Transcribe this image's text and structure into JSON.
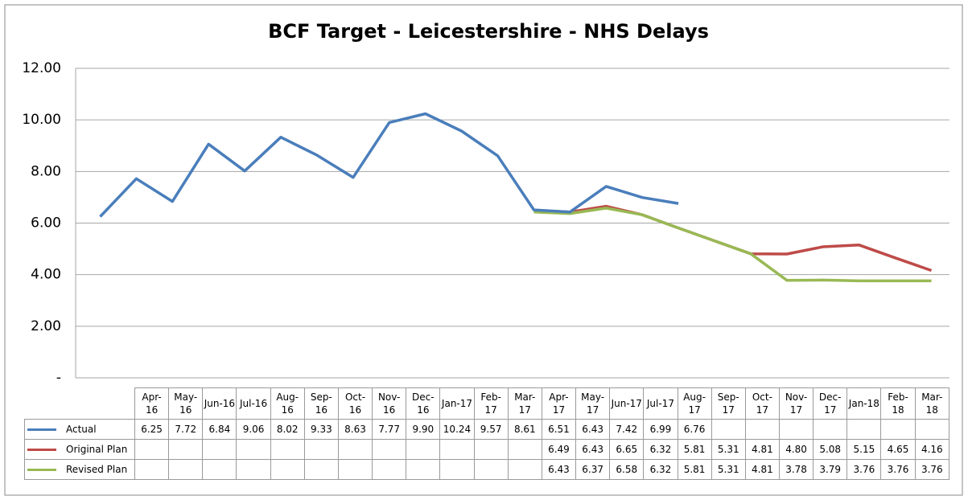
{
  "chart_data": {
    "type": "line",
    "title": "BCF Target - Leicestershire - NHS Delays",
    "categories": [
      "Apr-16",
      "May-16",
      "Jun-16",
      "Jul-16",
      "Aug-16",
      "Sep-16",
      "Oct-16",
      "Nov-16",
      "Dec-16",
      "Jan-17",
      "Feb-17",
      "Mar-17",
      "Apr-17",
      "May-17",
      "Jun-17",
      "Jul-17",
      "Aug-17",
      "Sep-17",
      "Oct-17",
      "Nov-17",
      "Dec-17",
      "Jan-18",
      "Feb-18",
      "Mar-18"
    ],
    "series": [
      {
        "name": "Actual",
        "color": "#4a7ebb",
        "values": [
          6.25,
          7.72,
          6.84,
          9.06,
          8.02,
          9.33,
          8.63,
          7.77,
          9.9,
          10.24,
          9.57,
          8.61,
          6.51,
          6.43,
          7.42,
          6.99,
          6.76,
          null,
          null,
          null,
          null,
          null,
          null,
          null
        ],
        "value_labels": [
          "6.25",
          "7.72",
          "6.84",
          "9.06",
          "8.02",
          "9.33",
          "8.63",
          "7.77",
          "9.90",
          "10.24",
          "9.57",
          "8.61",
          "6.51",
          "6.43",
          "7.42",
          "6.99",
          "6.76",
          null,
          null,
          null,
          null,
          null,
          null,
          null
        ]
      },
      {
        "name": "Original Plan",
        "color": "#be4b48",
        "values": [
          null,
          null,
          null,
          null,
          null,
          null,
          null,
          null,
          null,
          null,
          null,
          null,
          6.49,
          6.43,
          6.65,
          6.32,
          5.81,
          5.31,
          4.81,
          4.8,
          5.08,
          5.15,
          4.65,
          4.16
        ],
        "value_labels": [
          null,
          null,
          null,
          null,
          null,
          null,
          null,
          null,
          null,
          null,
          null,
          null,
          "6.49",
          "6.43",
          "6.65",
          "6.32",
          "5.81",
          "5.31",
          "4.81",
          "4.80",
          "5.08",
          "5.15",
          "4.65",
          "4.16"
        ]
      },
      {
        "name": "Revised Plan",
        "color": "#98b954",
        "values": [
          null,
          null,
          null,
          null,
          null,
          null,
          null,
          null,
          null,
          null,
          null,
          null,
          6.43,
          6.37,
          6.58,
          6.32,
          5.81,
          5.31,
          4.81,
          3.78,
          3.79,
          3.76,
          3.76,
          3.76
        ],
        "value_labels": [
          null,
          null,
          null,
          null,
          null,
          null,
          null,
          null,
          null,
          null,
          null,
          null,
          "6.43",
          "6.37",
          "6.58",
          "6.32",
          "5.81",
          "5.31",
          "4.81",
          "3.78",
          "3.79",
          "3.76",
          "3.76",
          "3.76"
        ]
      }
    ],
    "ylim": [
      0,
      12
    ],
    "yticks": [
      {
        "value": 0,
        "label": "-"
      },
      {
        "value": 2,
        "label": "2.00"
      },
      {
        "value": 4,
        "label": "4.00"
      },
      {
        "value": 6,
        "label": "6.00"
      },
      {
        "value": 8,
        "label": "8.00"
      },
      {
        "value": 10,
        "label": "10.00"
      },
      {
        "value": 12,
        "label": "12.00"
      }
    ],
    "grid": true,
    "legend": "table"
  }
}
